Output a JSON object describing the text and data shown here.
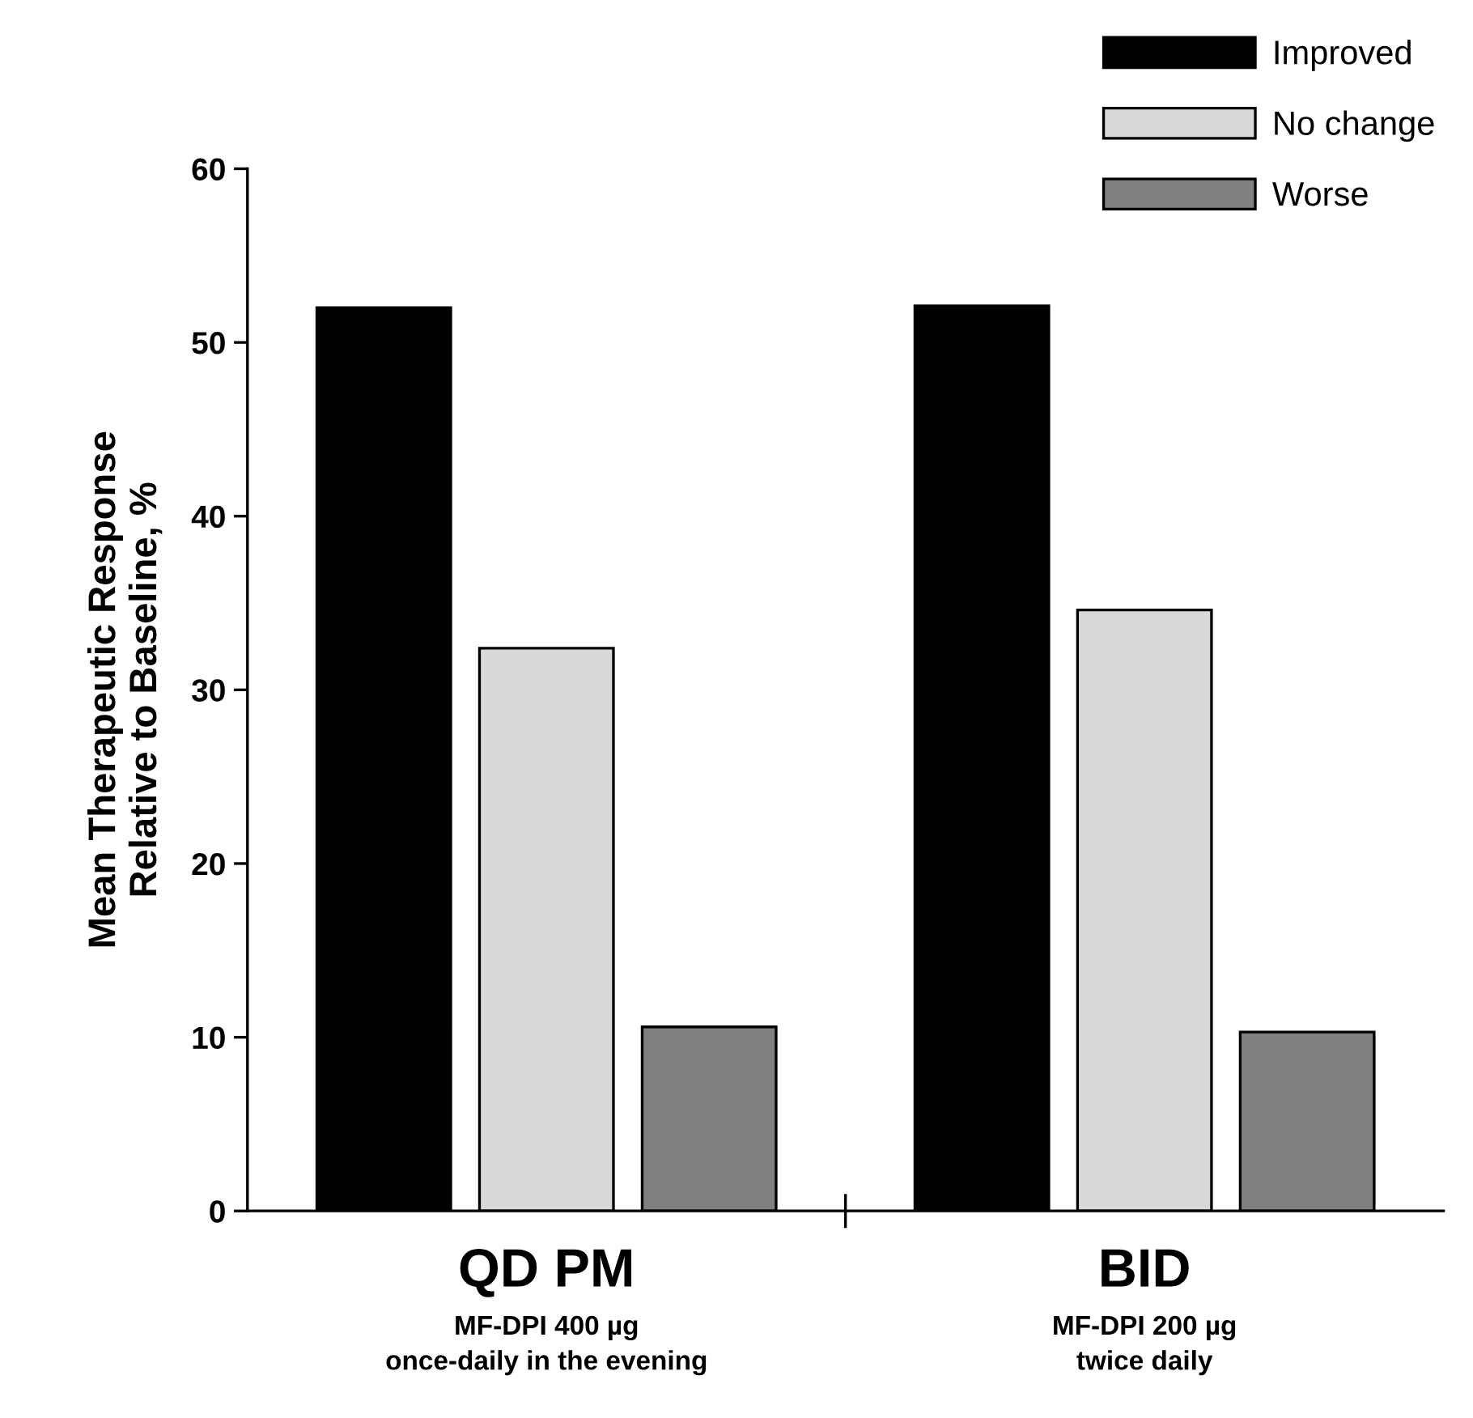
{
  "chart_data": {
    "type": "bar",
    "ylabel": "Mean Therapeutic Response\nRelative to Baseline, %",
    "categories": [
      "QD PM\nMF-DPI 400 µg\nonce-daily in the evening",
      "BID\nMF-DPI 200 µg\ntwice daily"
    ],
    "series": [
      {
        "name": "Improved",
        "color": "#000000",
        "values": [
          52.0,
          52.1
        ]
      },
      {
        "name": "No change",
        "color": "#d9d9d9",
        "values": [
          32.4,
          34.6
        ]
      },
      {
        "name": "Worse",
        "color": "#808080",
        "values": [
          10.6,
          10.3
        ]
      }
    ],
    "ylim": [
      0,
      60
    ],
    "yticks": [
      0,
      10,
      20,
      30,
      40,
      50,
      60
    ],
    "grid": false,
    "legend": "top right"
  }
}
